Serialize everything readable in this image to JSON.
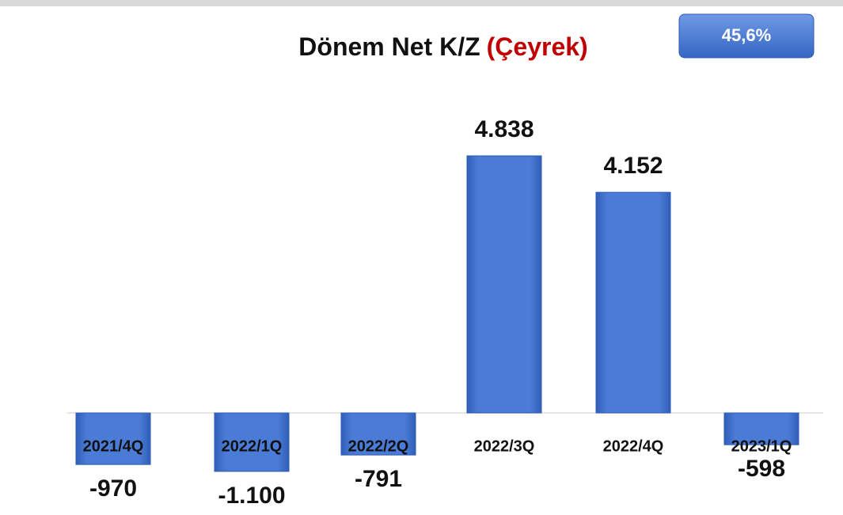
{
  "chart_data": {
    "type": "bar",
    "title": "Dönem Net K/Z",
    "subtitle": "(Çeyrek)",
    "annotation": "45,6%",
    "categories": [
      "2021/4Q",
      "2022/1Q",
      "2022/2Q",
      "2022/3Q",
      "2022/4Q",
      "2023/1Q"
    ],
    "values": [
      -970,
      -1100,
      -791,
      4838,
      4152,
      -598
    ],
    "value_labels": [
      "-970",
      "-1.100",
      "-791",
      "4.838",
      "4.152",
      "-598"
    ],
    "color": "#4a7bd6"
  }
}
